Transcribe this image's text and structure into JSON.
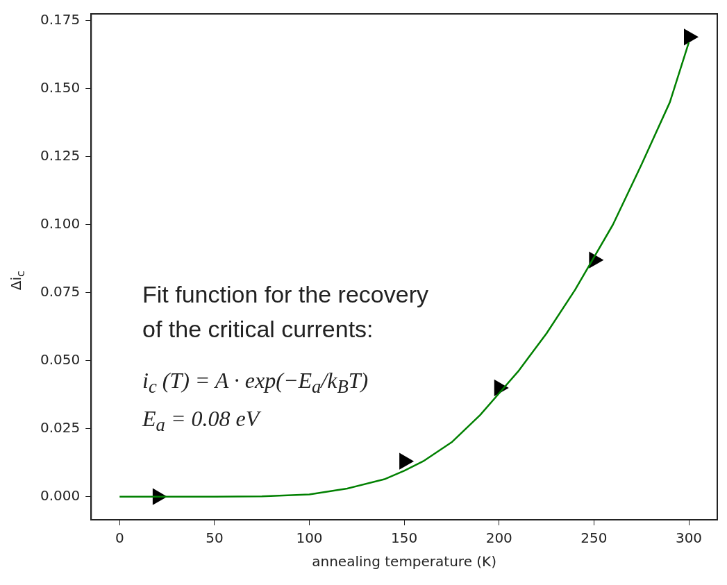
{
  "chart_data": {
    "type": "scatter",
    "xlabel": "annealing temperature (K)",
    "ylabel": "Δi$_{c}$",
    "annotations": [
      "Fit function for the recovery",
      "of the critical currents:",
      "i$_{c}$ (T) = A · exp(−E$_{a}$/k$_{B}$T)",
      "E$_{a}$ = 0.08 eV"
    ],
    "xlim": [
      -15,
      315
    ],
    "xticks": [
      0,
      50,
      100,
      150,
      200,
      250,
      300
    ],
    "ylim": [
      -0.0085,
      0.1775
    ],
    "yticks": [
      {
        "value": 0,
        "label": "0.000"
      },
      {
        "value": 0.025,
        "label": "0.025"
      },
      {
        "value": 0.05,
        "label": "0.050"
      },
      {
        "value": 0.075,
        "label": "0.075"
      },
      {
        "value": 0.1,
        "label": "0.100"
      },
      {
        "value": 0.125,
        "label": "0.125"
      },
      {
        "value": 0.15,
        "label": "0.150"
      },
      {
        "value": 0.175,
        "label": "0.175"
      }
    ],
    "grid": false,
    "series": [
      {
        "type": "line",
        "color": "#008000",
        "marker": "none",
        "line_style": "solid",
        "x": [
          0,
          50,
          75,
          100,
          120,
          140,
          150,
          160,
          175,
          190,
          200,
          210,
          225,
          240,
          250,
          260,
          275,
          290,
          300
        ],
        "values": [
          0,
          0,
          0.0001,
          0.0008,
          0.003,
          0.0065,
          0.0095,
          0.013,
          0.02,
          0.03,
          0.038,
          0.046,
          0.06,
          0.076,
          0.088,
          0.1,
          0.122,
          0.145,
          0.167
        ]
      },
      {
        "color": "#000000",
        "marker": "triangle",
        "x": [
          20,
          150,
          200,
          250,
          300
        ],
        "values": [
          0,
          0.013,
          0.04,
          0.087,
          0.169
        ]
      }
    ]
  }
}
